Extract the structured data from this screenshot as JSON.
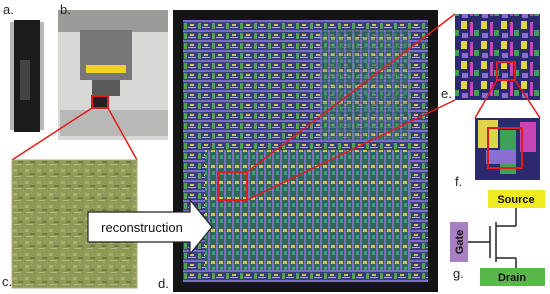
{
  "panels": {
    "a": "a.",
    "b": "b.",
    "c": "c.",
    "d": "d.",
    "e": "e.",
    "f": "f.",
    "g": "g."
  },
  "arrow_label": "reconstruction",
  "transistor": {
    "source": "Source",
    "gate": "Gate",
    "drain": "Drain"
  }
}
